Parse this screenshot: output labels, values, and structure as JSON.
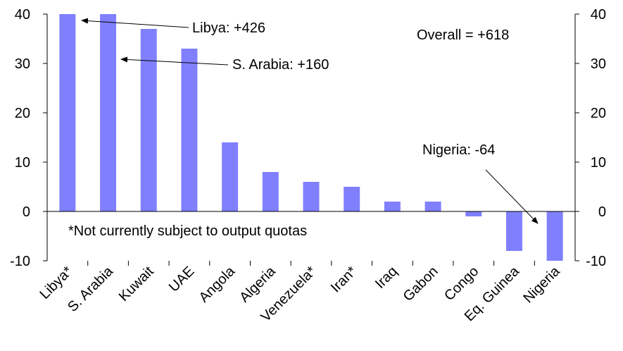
{
  "chart_data": {
    "type": "bar",
    "categories": [
      "Libya*",
      "S. Arabia",
      "Kuwait",
      "UAE",
      "Angola",
      "Algeria",
      "Venezuela*",
      "Iran*",
      "Iraq",
      "Gabon",
      "Congo",
      "Eq. Guinea",
      "Nigeria"
    ],
    "values": [
      40,
      40,
      37,
      33,
      14,
      8,
      6,
      5,
      2,
      2,
      -1,
      -8,
      -10
    ],
    "ylim": [
      -10,
      40
    ],
    "yticks": [
      "-10",
      "0",
      "10",
      "20",
      "30",
      "40"
    ],
    "bar_color": "#8080ff",
    "grid": false,
    "annotations": {
      "libya": "Libya: +426",
      "saudi": "S. Arabia: +160",
      "nigeria": "Nigeria: -64",
      "overall": "Overall = +618",
      "footnote": "*Not currently subject to output quotas"
    }
  }
}
